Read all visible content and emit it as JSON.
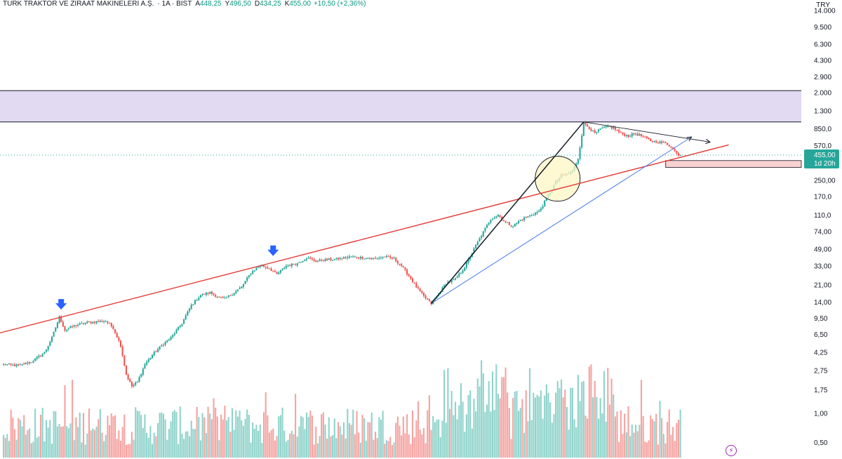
{
  "header": {
    "symbol": "TURK TRAKTOR VE ZIRAAT MAKINELERI A.Ş.",
    "interval": "· 1A · BIST",
    "open_label": "A",
    "open": "448,25",
    "high_label": "Y",
    "high": "496,50",
    "low_label": "D",
    "low": "434,25",
    "close_label": "K",
    "close": "455,00",
    "change": "+10,50 (+2,36%)"
  },
  "currency": "TRY",
  "price_badge": {
    "price": "455,00",
    "countdown": "1d 20h"
  },
  "colors": {
    "up": "#26a69a",
    "down": "#ef5350",
    "volume_up": "#8fd3cb",
    "volume_down": "#f5a3a1",
    "zone_fill": "#e2d9f3",
    "red_line": "#e53935",
    "blue_line": "#4a7ce8",
    "circle_fill": "#fdf5c4",
    "arrow": "#2962ff"
  },
  "icons": {
    "alert": "lightning-icon",
    "markers": "down-arrow-icon"
  },
  "chart_data": {
    "type": "candlestick",
    "y_scale": "log",
    "ylim": [
      0.45,
      16000
    ],
    "y_ticks": [
      {
        "v": 14000,
        "label": "14.000"
      },
      {
        "v": 9500,
        "label": "9.500"
      },
      {
        "v": 6300,
        "label": "6.300"
      },
      {
        "v": 4300,
        "label": "4.300"
      },
      {
        "v": 2900,
        "label": "2.900"
      },
      {
        "v": 2000,
        "label": "2.000"
      },
      {
        "v": 1300,
        "label": "1.300"
      },
      {
        "v": 850,
        "label": "850,0"
      },
      {
        "v": 570,
        "label": "570,0"
      },
      {
        "v": 250,
        "label": "250,00"
      },
      {
        "v": 170,
        "label": "170,0"
      },
      {
        "v": 110,
        "label": "110,0"
      },
      {
        "v": 74,
        "label": "74,00"
      },
      {
        "v": 49,
        "label": "49,00"
      },
      {
        "v": 33,
        "label": "33,00"
      },
      {
        "v": 21,
        "label": "21,00"
      },
      {
        "v": 14,
        "label": "14,00"
      },
      {
        "v": 9.5,
        "label": "9,50"
      },
      {
        "v": 6.5,
        "label": "6,50"
      },
      {
        "v": 4.25,
        "label": "4,25"
      },
      {
        "v": 2.75,
        "label": "2,75"
      },
      {
        "v": 1.75,
        "label": "1,75"
      },
      {
        "v": 1.0,
        "label": "1,00"
      },
      {
        "v": 0.5,
        "label": "0,50"
      }
    ],
    "last_price": 455,
    "resistance_zone": [
      1000,
      2100
    ],
    "anchor_points": [
      [
        0,
        3.2
      ],
      [
        8,
        3.1
      ],
      [
        15,
        3.4
      ],
      [
        22,
        4.2
      ],
      [
        26,
        6.0
      ],
      [
        30,
        9.8
      ],
      [
        33,
        7.2
      ],
      [
        38,
        8.0
      ],
      [
        45,
        8.6
      ],
      [
        50,
        8.8
      ],
      [
        55,
        8.9
      ],
      [
        59,
        7.6
      ],
      [
        63,
        5.0
      ],
      [
        66,
        2.5
      ],
      [
        69,
        1.9
      ],
      [
        72,
        2.1
      ],
      [
        76,
        3.2
      ],
      [
        80,
        4.0
      ],
      [
        85,
        5.0
      ],
      [
        90,
        6.0
      ],
      [
        96,
        8.5
      ],
      [
        101,
        13.0
      ],
      [
        106,
        16.5
      ],
      [
        111,
        17.5
      ],
      [
        115,
        16.0
      ],
      [
        119,
        15.0
      ],
      [
        124,
        17.5
      ],
      [
        128,
        20.0
      ],
      [
        133,
        28.0
      ],
      [
        138,
        33.5
      ],
      [
        143,
        31.0
      ],
      [
        147,
        27.0
      ],
      [
        152,
        33.0
      ],
      [
        158,
        35.0
      ],
      [
        163,
        40.0
      ],
      [
        168,
        37.0
      ],
      [
        174,
        38.0
      ],
      [
        180,
        39.0
      ],
      [
        187,
        41.0
      ],
      [
        193,
        40.0
      ],
      [
        200,
        39.0
      ],
      [
        205,
        41.0
      ],
      [
        210,
        39.0
      ],
      [
        214,
        33.0
      ],
      [
        218,
        26.0
      ],
      [
        222,
        20.0
      ],
      [
        226,
        16.0
      ],
      [
        230,
        13.5
      ],
      [
        234,
        17.0
      ],
      [
        238,
        22.0
      ],
      [
        243,
        24.0
      ],
      [
        248,
        32.0
      ],
      [
        252,
        45.0
      ],
      [
        257,
        68.0
      ],
      [
        262,
        100.0
      ],
      [
        266,
        110.0
      ],
      [
        270,
        92.0
      ],
      [
        274,
        85.0
      ],
      [
        278,
        98.0
      ],
      [
        283,
        108.0
      ],
      [
        288,
        120.0
      ],
      [
        291,
        150.0
      ],
      [
        294,
        190.0
      ],
      [
        297,
        240.0
      ],
      [
        300,
        280.0
      ],
      [
        303,
        290.0
      ],
      [
        306,
        310.0
      ],
      [
        309,
        420.0
      ],
      [
        312,
        980.0
      ],
      [
        315,
        870.0
      ],
      [
        318,
        760.0
      ],
      [
        321,
        840.0
      ],
      [
        325,
        900.0
      ],
      [
        328,
        870.0
      ],
      [
        332,
        760.0
      ],
      [
        336,
        720.0
      ],
      [
        340,
        760.0
      ],
      [
        344,
        700.0
      ],
      [
        348,
        640.0
      ],
      [
        352,
        620.0
      ],
      [
        356,
        600.0
      ],
      [
        359,
        560.0
      ],
      [
        362,
        470.0
      ],
      [
        364,
        455.0
      ]
    ],
    "volume_range": [
      0,
      100
    ],
    "annotations": [
      {
        "type": "trendline",
        "color": "red",
        "from": [
          -5,
          6.5
        ],
        "to": [
          390,
          580
        ]
      },
      {
        "type": "trendline",
        "color": "blue",
        "from": [
          230,
          13.5
        ],
        "to": [
          370,
          700
        ]
      },
      {
        "type": "trendline",
        "color": "black",
        "from": [
          230,
          13.5
        ],
        "to": [
          312,
          1000
        ]
      },
      {
        "type": "trendline",
        "color": "black",
        "from": [
          312,
          1000
        ],
        "to": [
          380,
          620
        ]
      },
      {
        "type": "circle",
        "center": [
          298,
          260
        ]
      },
      {
        "type": "down-arrow",
        "at": [
          31,
          11.5
        ]
      },
      {
        "type": "down-arrow",
        "at": [
          145,
          41
        ]
      },
      {
        "type": "rectangle",
        "from": [
          355,
          400
        ],
        "to": [
          400,
          340
        ]
      }
    ]
  }
}
